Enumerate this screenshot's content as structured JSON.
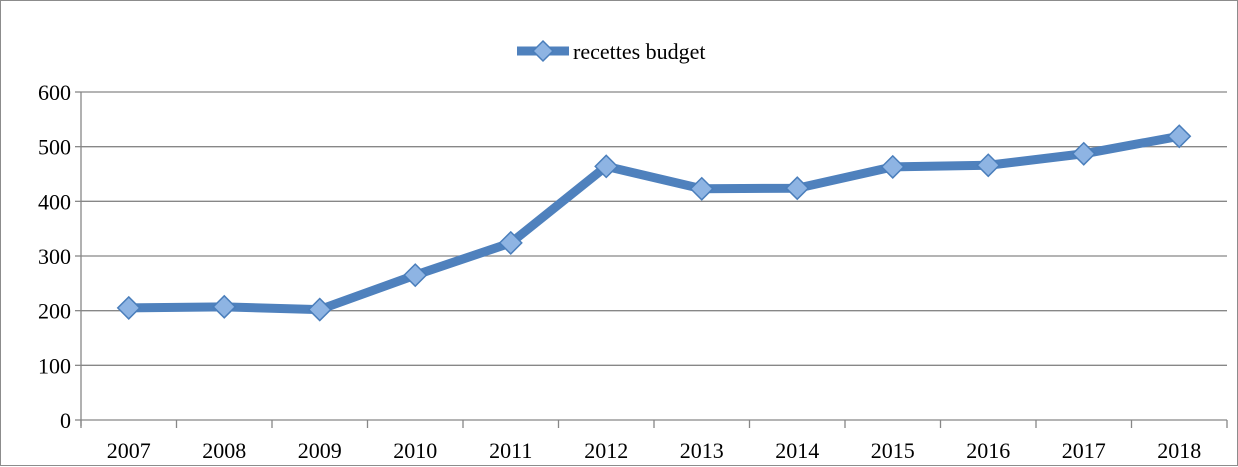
{
  "chart_data": {
    "type": "line",
    "categories": [
      "2007",
      "2008",
      "2009",
      "2010",
      "2011",
      "2012",
      "2013",
      "2014",
      "2015",
      "2016",
      "2017",
      "2018"
    ],
    "series": [
      {
        "name": "recettes budget",
        "values": [
          205,
          207,
          202,
          265,
          324,
          464,
          423,
          424,
          463,
          466,
          487,
          519
        ]
      }
    ],
    "title": "",
    "xlabel": "",
    "ylabel": "",
    "ylim": [
      0,
      600
    ],
    "yticks": [
      0,
      100,
      200,
      300,
      400,
      500,
      600
    ],
    "grid": "horizontal",
    "legend_position": "top",
    "colors": {
      "line": "#4f81bd",
      "marker_fill": "#8eb4e3",
      "marker_stroke": "#4a7ebb",
      "gridline": "#878787",
      "axis": "#878787"
    }
  }
}
